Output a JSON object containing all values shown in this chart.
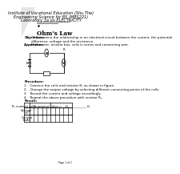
{
  "institution_line1": "Institute of Vocational Education (Shu The)",
  "institution_line2": "Engineering Science for BS (MBS221)",
  "institution_line3": "Laboratory 3a on ELECTRICITY",
  "title": "Ohm's Law",
  "objectives_label": "Objectives:",
  "objectives_text": "To determine the relationship in an electrical circuit between the current, the potential\ndifference, voltage and the resistance.",
  "apparatus_label": "Apparatus:",
  "apparatus_text": "Multimeter, resistor box, cells in series and connecting wire.",
  "procedure_label": "Procedure:",
  "procedure_items": [
    "1.   Connect the cells and resistor R₁ as shown in figure.",
    "2.   Change the output voltage by selecting different connecting points of the cells.",
    "3.   Record the current and voltage accordingly.",
    "4.   Repeat the above procedure with resistor R₂."
  ],
  "result_label": "Result:",
  "table_header1": "R₁ nominal value = ________________ Ω",
  "table_header2": "R₂ nominal value = ________________ Ω",
  "row_label1a": "Voltage",
  "row_label1b": "(V)",
  "row_label2a": "Current",
  "row_label2b": "(mA)",
  "num_data_cols_each": 5,
  "page_text": "Page 1 of 1",
  "bg_color": "#ffffff",
  "tc": "#000000",
  "gray": "#888888",
  "header_fontsize": 3.6,
  "title_fontsize": 5.2,
  "body_fontsize": 2.9,
  "label_fontsize": 2.7,
  "table_header_fs": 2.6,
  "page_fs": 2.2
}
